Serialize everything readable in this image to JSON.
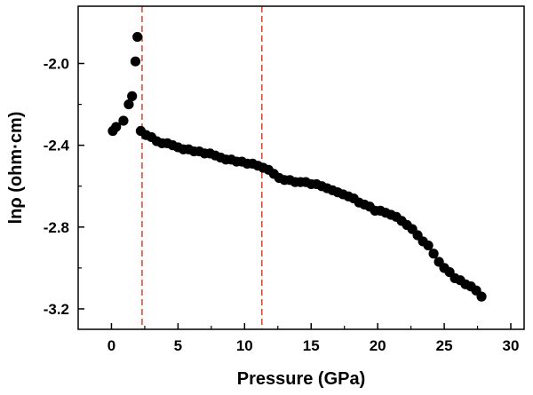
{
  "chart_data": {
    "type": "scatter",
    "xlabel": "Pressure (GPa)",
    "ylabel": "lnρ (ohm·cm)",
    "xlim": [
      -2.5,
      31
    ],
    "ylim": [
      -3.3,
      -1.72
    ],
    "xticks": [
      0,
      5,
      10,
      15,
      20,
      25,
      30
    ],
    "yticks": [
      -2.0,
      -2.4,
      -2.8,
      -3.2
    ],
    "ytick_labels": [
      "-2.0",
      "-2.4",
      "-2.8",
      "-3.2"
    ],
    "grid": false,
    "legend": "none",
    "marker_color": "#000000",
    "vlines": [
      {
        "x": 2.3,
        "style": "dashed",
        "color": "#e0402a"
      },
      {
        "x": 11.3,
        "style": "dashed",
        "color": "#e0402a"
      }
    ],
    "series": [
      {
        "points": [
          [
            0.1,
            -2.33
          ],
          [
            0.35,
            -2.31
          ],
          [
            0.9,
            -2.28
          ],
          [
            1.3,
            -2.2
          ],
          [
            1.55,
            -2.16
          ],
          [
            1.8,
            -1.99
          ],
          [
            1.95,
            -1.87
          ],
          [
            2.2,
            -2.33
          ],
          [
            2.6,
            -2.35
          ],
          [
            3.0,
            -2.36
          ],
          [
            3.4,
            -2.38
          ],
          [
            3.8,
            -2.39
          ],
          [
            4.2,
            -2.39
          ],
          [
            4.6,
            -2.4
          ],
          [
            5.0,
            -2.41
          ],
          [
            5.4,
            -2.42
          ],
          [
            5.8,
            -2.42
          ],
          [
            6.2,
            -2.43
          ],
          [
            6.6,
            -2.43
          ],
          [
            7.0,
            -2.44
          ],
          [
            7.4,
            -2.44
          ],
          [
            7.8,
            -2.45
          ],
          [
            8.2,
            -2.46
          ],
          [
            8.6,
            -2.47
          ],
          [
            9.0,
            -2.47
          ],
          [
            9.4,
            -2.48
          ],
          [
            9.8,
            -2.48
          ],
          [
            10.2,
            -2.49
          ],
          [
            10.6,
            -2.49
          ],
          [
            11.0,
            -2.5
          ],
          [
            11.4,
            -2.51
          ],
          [
            11.8,
            -2.52
          ],
          [
            12.2,
            -2.54
          ],
          [
            12.6,
            -2.56
          ],
          [
            13.0,
            -2.57
          ],
          [
            13.4,
            -2.57
          ],
          [
            13.8,
            -2.58
          ],
          [
            14.2,
            -2.58
          ],
          [
            14.6,
            -2.58
          ],
          [
            15.0,
            -2.59
          ],
          [
            15.4,
            -2.59
          ],
          [
            15.8,
            -2.6
          ],
          [
            16.2,
            -2.61
          ],
          [
            16.6,
            -2.62
          ],
          [
            17.0,
            -2.63
          ],
          [
            17.4,
            -2.64
          ],
          [
            17.8,
            -2.65
          ],
          [
            18.2,
            -2.66
          ],
          [
            18.6,
            -2.68
          ],
          [
            19.0,
            -2.69
          ],
          [
            19.4,
            -2.7
          ],
          [
            19.8,
            -2.72
          ],
          [
            20.2,
            -2.72
          ],
          [
            20.6,
            -2.73
          ],
          [
            21.0,
            -2.74
          ],
          [
            21.4,
            -2.75
          ],
          [
            21.8,
            -2.77
          ],
          [
            22.2,
            -2.79
          ],
          [
            22.6,
            -2.81
          ],
          [
            23.0,
            -2.84
          ],
          [
            23.4,
            -2.87
          ],
          [
            23.8,
            -2.89
          ],
          [
            24.2,
            -2.93
          ],
          [
            24.6,
            -2.97
          ],
          [
            25.0,
            -3.0
          ],
          [
            25.4,
            -3.02
          ],
          [
            25.8,
            -3.05
          ],
          [
            26.2,
            -3.06
          ],
          [
            26.6,
            -3.08
          ],
          [
            27.0,
            -3.09
          ],
          [
            27.4,
            -3.11
          ],
          [
            27.8,
            -3.14
          ]
        ]
      }
    ]
  }
}
